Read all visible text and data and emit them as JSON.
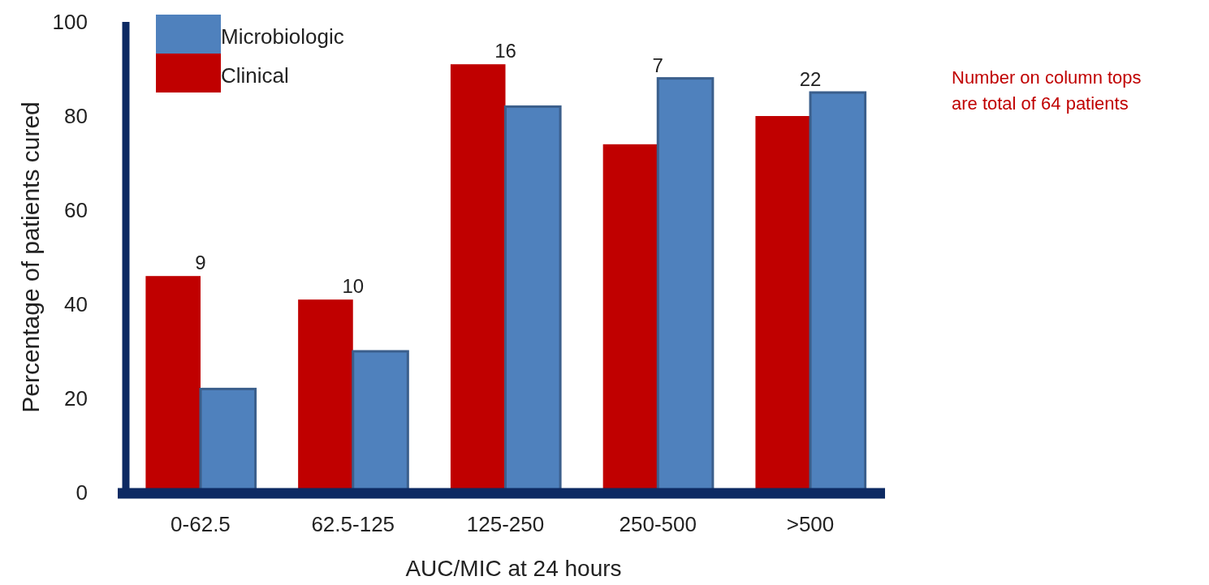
{
  "chart_data": {
    "type": "bar",
    "xlabel": "AUC/MIC at 24 hours",
    "ylabel": "Percentage of patients cured",
    "categories": [
      "0-62.5",
      "62.5-125",
      "125-250",
      "250-500",
      ">500"
    ],
    "series": [
      {
        "name": "Clinical",
        "color": "#c00000",
        "values": [
          46,
          41,
          91,
          74,
          80
        ]
      },
      {
        "name": "Microbiologic",
        "color": "#4f81bd",
        "values": [
          22,
          30,
          82,
          88,
          85
        ]
      }
    ],
    "ylim": [
      0,
      100
    ],
    "yticks": [
      0,
      20,
      40,
      60,
      80,
      100
    ],
    "grid": false,
    "legend": "top left",
    "annotations": [
      "9",
      "10",
      "16",
      "7",
      "22",
      "Number on column tops are total of 64 patients"
    ]
  }
}
